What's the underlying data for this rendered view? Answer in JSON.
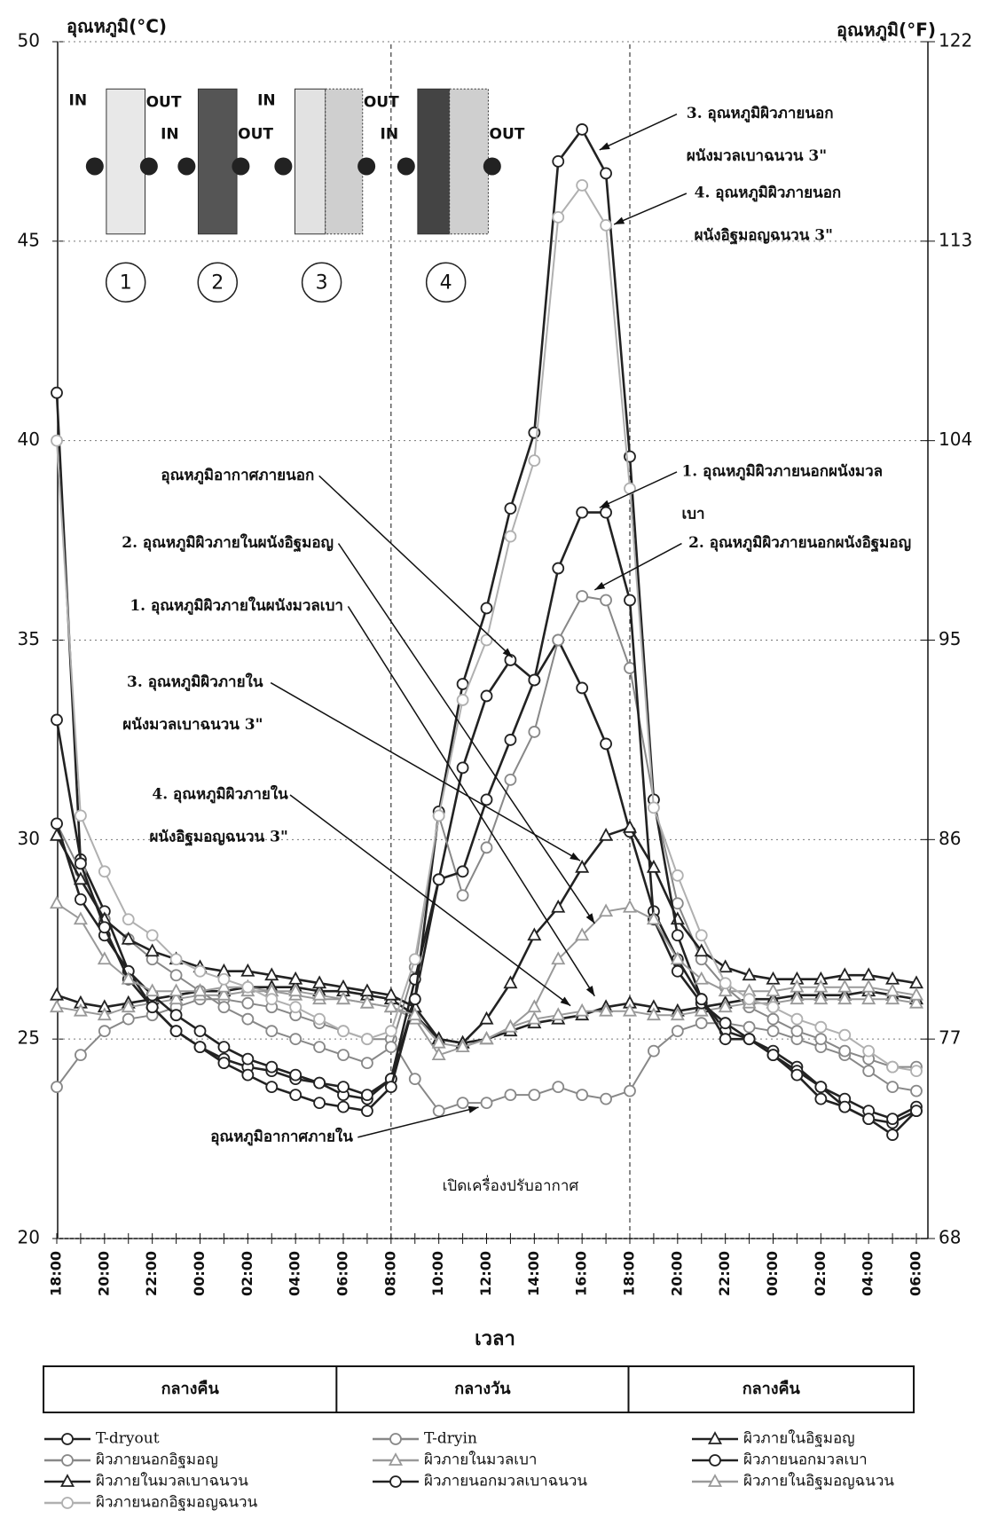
{
  "chart_data": {
    "type": "line",
    "y_label": "อุณหภูมิ(°C)",
    "y2_label": "อุณหภูมิ(°F)",
    "x_label": "เวลา",
    "categories": [
      "18:00",
      null,
      "20:00",
      null,
      "22:00",
      null,
      "00:00",
      null,
      "02:00",
      null,
      "04:00",
      null,
      "06:00",
      null,
      "08:00",
      null,
      "10:00",
      null,
      "12:00",
      null,
      "14:00",
      null,
      "16:00",
      null,
      "18:00",
      null,
      "20:00",
      null,
      "22:00",
      null,
      "00:00",
      null,
      "02:00",
      null,
      "04:00",
      null,
      "06:00"
    ],
    "ylim": [
      20,
      50
    ],
    "yticks": [
      20,
      25,
      30,
      35,
      40,
      45,
      50
    ],
    "y2lim": [
      68,
      122
    ],
    "y2ticks": [
      68,
      77,
      86,
      95,
      104,
      113,
      122
    ],
    "ac_label": "เปิดเครื่องปรับอากาศ",
    "periods": [
      "กลางคืน",
      "กลางวัน",
      "กลางคืน"
    ],
    "inset": [
      {
        "number": "1",
        "in": "IN",
        "out": "OUT"
      },
      {
        "number": "2",
        "in": "IN",
        "out": "OUT"
      },
      {
        "number": "3",
        "in": "IN",
        "out": "OUT"
      },
      {
        "number": "4",
        "in": "IN",
        "out": "OUT"
      }
    ],
    "annotations": [
      {
        "lines": [
          "3. อุณหภูมิผิวภายนอก",
          "ผนังมวลเบาฉนวน 3\""
        ]
      },
      {
        "lines": [
          "4. อุณหภูมิผิวภายนอก",
          "ผนังอิฐมอญฉนวน 3\""
        ]
      },
      {
        "lines": [
          "อุณหภูมิอากาศภายนอก"
        ]
      },
      {
        "lines": [
          "1. อุณหภูมิผิวภายนอกผนังมวล",
          "เบา"
        ]
      },
      {
        "lines": [
          "2. อุณหภูมิผิวภายในผนังอิฐมอญ"
        ]
      },
      {
        "lines": [
          "2. อุณหภูมิผิวภายนอกผนังอิฐมอญ"
        ]
      },
      {
        "lines": [
          "1. อุณหภูมิผิวภายในผนังมวลเบา"
        ]
      },
      {
        "lines": [
          "3. อุณหภูมิผิวภายใน",
          "ผนังมวลเบาฉนวน 3\""
        ]
      },
      {
        "lines": [
          "4. อุณหภูมิผิวภายใน",
          "ผนังอิฐมอญฉนวน 3\""
        ]
      },
      {
        "lines": [
          "อุณหภูมิอากาศภายใน"
        ]
      }
    ],
    "series": [
      {
        "name": "T-dryout",
        "color": "#222222",
        "marker": "circle",
        "values": [
          33,
          29.5,
          28.2,
          26.7,
          25.8,
          25.2,
          24.8,
          24.5,
          24.3,
          24.2,
          24.0,
          23.9,
          23.6,
          23.5,
          24.0,
          26.0,
          29.0,
          31.8,
          33.6,
          34.5,
          34.0,
          35.0,
          33.8,
          32.4,
          30.2,
          28.2,
          27.0,
          26.0,
          25.2,
          25.0,
          24.7,
          24.3,
          23.8,
          23.3,
          23.0,
          22.9,
          23.2
        ]
      },
      {
        "name": "T-dryin",
        "color": "#888888",
        "marker": "circle",
        "values": [
          23.8,
          24.6,
          25.2,
          25.5,
          25.6,
          25.8,
          26.0,
          26.0,
          25.9,
          25.8,
          25.6,
          25.4,
          25.2,
          25.0,
          25.0,
          24.0,
          23.2,
          23.4,
          23.4,
          23.6,
          23.6,
          23.8,
          23.6,
          23.5,
          23.7,
          24.7,
          25.2,
          25.4,
          25.4,
          25.3,
          25.2,
          25.0,
          24.8,
          24.6,
          24.2,
          23.8,
          23.7
        ]
      },
      {
        "name": "ผิวภายในอิฐมอญ",
        "color": "#222222",
        "marker": "triangle",
        "values": [
          26.1,
          25.9,
          25.8,
          25.9,
          26.0,
          26.1,
          26.2,
          26.2,
          26.3,
          26.3,
          26.3,
          26.2,
          26.2,
          26.1,
          26.0,
          25.6,
          25.0,
          24.9,
          25.0,
          25.2,
          25.4,
          25.5,
          25.6,
          25.8,
          25.9,
          25.8,
          25.7,
          25.8,
          25.9,
          26.0,
          26.0,
          26.1,
          26.1,
          26.1,
          26.2,
          26.1,
          26.0
        ]
      },
      {
        "name": "ผิวภายนอกอิฐมอญ",
        "color": "#888888",
        "marker": "circle",
        "values": [
          30.4,
          29.2,
          28.0,
          27.5,
          27.0,
          26.6,
          26.2,
          25.8,
          25.5,
          25.2,
          25.0,
          24.8,
          24.6,
          24.4,
          24.8,
          26.8,
          30.6,
          28.6,
          29.8,
          31.5,
          32.7,
          35.0,
          36.1,
          36.0,
          34.3,
          31.0,
          28.4,
          27.0,
          26.3,
          25.8,
          25.5,
          25.2,
          25.0,
          24.7,
          24.5,
          24.3,
          24.3
        ]
      },
      {
        "name": "ผิวภายในมวลเบา",
        "color": "#999999",
        "marker": "triangle",
        "values": [
          25.8,
          25.7,
          25.6,
          25.8,
          25.9,
          26.0,
          26.1,
          26.1,
          26.2,
          26.2,
          26.1,
          26.0,
          26.0,
          25.9,
          25.8,
          25.5,
          24.6,
          24.8,
          25.0,
          25.3,
          25.5,
          25.6,
          25.7,
          25.7,
          25.7,
          25.6,
          25.6,
          25.7,
          25.8,
          25.9,
          25.9,
          26.0,
          26.0,
          26.0,
          26.0,
          26.0,
          25.9
        ]
      },
      {
        "name": "ผิวภายนอกมวลเบา",
        "color": "#222222",
        "marker": "circle",
        "values": [
          30.4,
          28.5,
          27.6,
          26.7,
          26.1,
          25.6,
          25.2,
          24.8,
          24.5,
          24.3,
          24.1,
          23.9,
          23.8,
          23.6,
          24.0,
          26.5,
          29.0,
          29.2,
          31.0,
          32.5,
          34.0,
          36.8,
          38.2,
          38.2,
          36.0,
          28.0,
          26.7,
          25.9,
          25.4,
          25.0,
          24.6,
          24.2,
          23.8,
          23.5,
          23.2,
          23.0,
          23.3
        ]
      },
      {
        "name": "ผิวภายในมวลเบาฉนวน",
        "color": "#222222",
        "marker": "triangle",
        "values": [
          30.1,
          29.0,
          28.0,
          27.5,
          27.2,
          27.0,
          26.8,
          26.7,
          26.7,
          26.6,
          26.5,
          26.4,
          26.3,
          26.2,
          26.1,
          25.8,
          25.0,
          24.9,
          25.5,
          26.4,
          27.6,
          28.3,
          29.3,
          30.1,
          30.3,
          29.3,
          28.0,
          27.2,
          26.8,
          26.6,
          26.5,
          26.5,
          26.5,
          26.6,
          26.6,
          26.5,
          26.4
        ]
      },
      {
        "name": "ผิวภายนอกมวลเบาฉนวน",
        "color": "#222222",
        "marker": "circle",
        "values": [
          41.2,
          29.4,
          27.8,
          26.5,
          25.8,
          25.2,
          24.8,
          24.4,
          24.1,
          23.8,
          23.6,
          23.4,
          23.3,
          23.2,
          23.8,
          26.0,
          30.7,
          33.9,
          35.8,
          38.3,
          40.2,
          47.0,
          47.8,
          46.7,
          39.6,
          31.0,
          27.6,
          26.0,
          25.0,
          25.0,
          24.6,
          24.1,
          23.5,
          23.3,
          23.0,
          22.6,
          23.2
        ]
      },
      {
        "name": "ผิวภายในอิฐมอญฉนวน",
        "color": "#999999",
        "marker": "triangle",
        "values": [
          28.4,
          28.0,
          27.0,
          26.5,
          26.2,
          26.2,
          26.2,
          26.3,
          26.3,
          26.2,
          26.2,
          26.1,
          26.0,
          25.9,
          25.8,
          25.6,
          24.9,
          24.8,
          25.0,
          25.3,
          25.8,
          27.0,
          27.6,
          28.2,
          28.3,
          28.0,
          27.0,
          26.5,
          26.2,
          26.2,
          26.2,
          26.3,
          26.3,
          26.3,
          26.3,
          26.2,
          26.1
        ]
      },
      {
        "name": "ผิวภายนอกอิฐมอญฉนวน",
        "color": "#b0b0b0",
        "marker": "circle",
        "values": [
          40.0,
          30.6,
          29.2,
          28.0,
          27.6,
          27.0,
          26.7,
          26.5,
          26.3,
          26.0,
          25.8,
          25.5,
          25.2,
          25.0,
          25.2,
          27.0,
          30.6,
          33.5,
          35.0,
          37.6,
          39.5,
          45.6,
          46.4,
          45.4,
          38.8,
          30.8,
          29.1,
          27.6,
          26.4,
          26.0,
          25.8,
          25.5,
          25.3,
          25.1,
          24.7,
          24.3,
          24.2
        ]
      }
    ]
  }
}
